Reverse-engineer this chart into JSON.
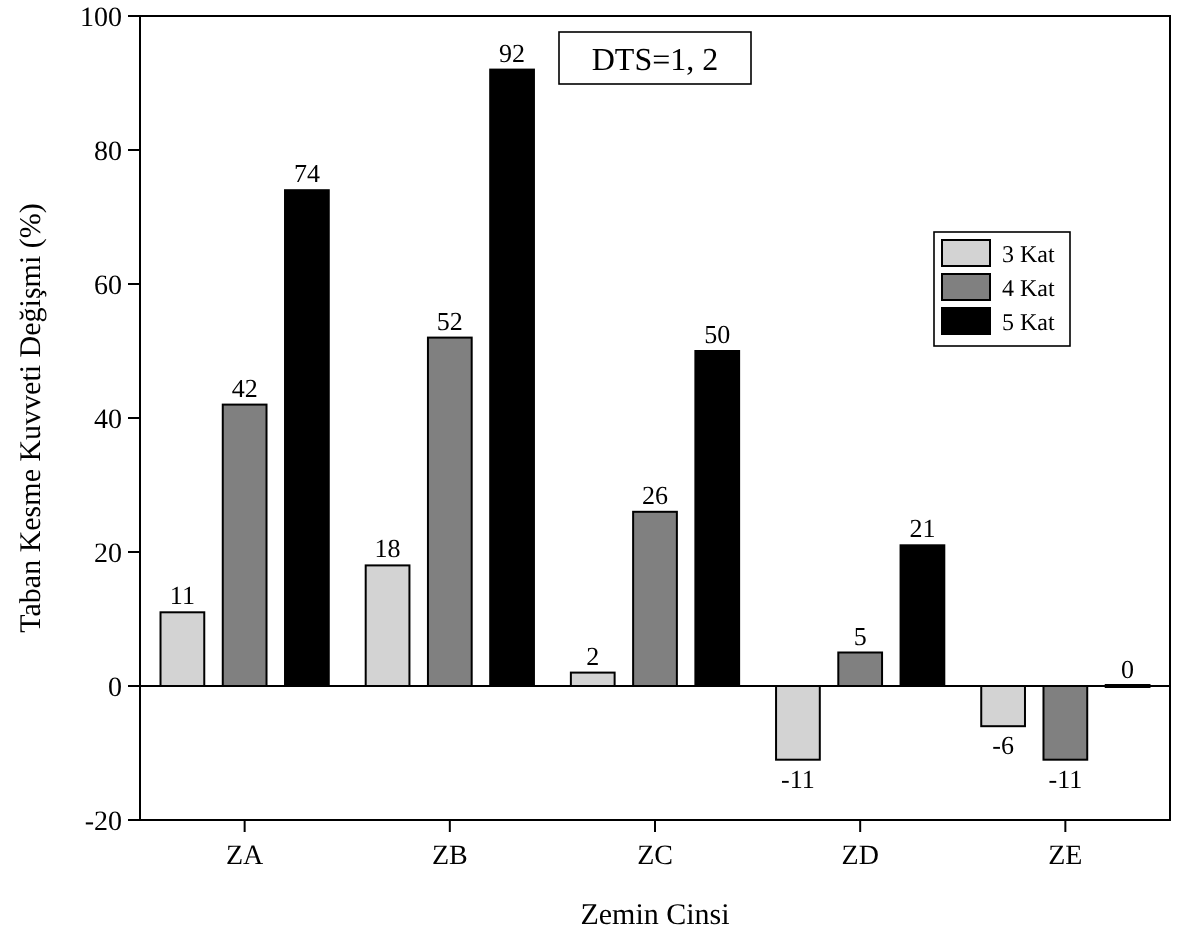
{
  "chart_data": {
    "type": "bar",
    "xlabel": "Zemin Cinsi",
    "ylabel": "Taban Kesme Kuvveti Değişmi (%)",
    "categories": [
      "ZA",
      "ZB",
      "ZC",
      "ZD",
      "ZE"
    ],
    "series": [
      {
        "name": "3 Kat",
        "color": "#d3d3d3",
        "values": [
          11,
          18,
          2,
          -11,
          -6
        ]
      },
      {
        "name": "4 Kat",
        "color": "#808080",
        "values": [
          42,
          52,
          26,
          5,
          -11
        ]
      },
      {
        "name": "5 Kat",
        "color": "#000000",
        "values": [
          74,
          92,
          50,
          21,
          0
        ]
      }
    ],
    "ylim": [
      -20,
      100
    ],
    "yticks": [
      -20,
      0,
      20,
      40,
      60,
      80,
      100
    ],
    "data_labels": true,
    "legend": "top right",
    "grid": false,
    "ref_lines": [
      {
        "axis": "y",
        "value": 0,
        "color": "#000000"
      }
    ],
    "annotations": [
      "DTS=1, 2"
    ]
  }
}
